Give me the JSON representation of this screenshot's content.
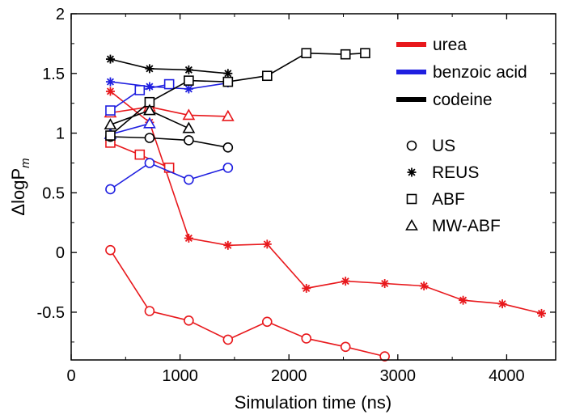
{
  "chart_data": {
    "type": "line",
    "xlabel": "Simulation time (ns)",
    "ylabel_main": "ΔlogP",
    "ylabel_sub": "m",
    "xlim": [
      0,
      4450
    ],
    "ylim": [
      -0.9,
      2.0
    ],
    "xticks": [
      0,
      1000,
      2000,
      3000,
      4000
    ],
    "yticks": [
      -0.5,
      0,
      0.5,
      1,
      1.5,
      2
    ],
    "ytick_labels": [
      "-0.5",
      "0",
      "0.5",
      "1",
      "1.5",
      "2"
    ],
    "grid": false,
    "colors": {
      "urea": "#e8181c",
      "benzoic acid": "#1f1fe0",
      "codeine": "#000000"
    },
    "legend_molecules": [
      {
        "name": "urea",
        "color": "#e8181c"
      },
      {
        "name": "benzoic acid",
        "color": "#1f1fe0"
      },
      {
        "name": "codeine",
        "color": "#000000"
      }
    ],
    "legend_methods": [
      {
        "name": "US",
        "marker": "circle"
      },
      {
        "name": "REUS",
        "marker": "asterisk"
      },
      {
        "name": "ABF",
        "marker": "square"
      },
      {
        "name": "MW-ABF",
        "marker": "triangle"
      }
    ],
    "series": [
      {
        "molecule": "urea",
        "method": "US",
        "x": [
          360,
          720,
          1080,
          1440,
          1800,
          2160,
          2520,
          2880
        ],
        "y": [
          0.02,
          -0.49,
          -0.57,
          -0.73,
          -0.58,
          -0.72,
          -0.79,
          -0.87
        ]
      },
      {
        "molecule": "urea",
        "method": "REUS",
        "x": [
          360,
          720,
          1080,
          1440,
          1800,
          2160,
          2520,
          2880,
          3240,
          3600,
          3960,
          4320
        ],
        "y": [
          1.35,
          1.09,
          0.12,
          0.06,
          0.07,
          -0.3,
          -0.24,
          -0.26,
          -0.28,
          -0.4,
          -0.43,
          -0.51
        ]
      },
      {
        "molecule": "urea",
        "method": "ABF",
        "x": [
          360,
          630,
          900
        ],
        "y": [
          0.92,
          0.82,
          0.71
        ]
      },
      {
        "molecule": "urea",
        "method": "MW-ABF",
        "x": [
          360,
          720,
          1080,
          1440
        ],
        "y": [
          1.17,
          1.22,
          1.15,
          1.14
        ]
      },
      {
        "molecule": "benzoic acid",
        "method": "US",
        "x": [
          360,
          720,
          1080,
          1440
        ],
        "y": [
          0.53,
          0.75,
          0.61,
          0.71
        ]
      },
      {
        "molecule": "benzoic acid",
        "method": "REUS",
        "x": [
          360,
          720,
          1080,
          1440
        ],
        "y": [
          1.43,
          1.39,
          1.37,
          1.42
        ]
      },
      {
        "molecule": "benzoic acid",
        "method": "ABF",
        "x": [
          360,
          630,
          900
        ],
        "y": [
          1.19,
          1.36,
          1.41
        ]
      },
      {
        "molecule": "benzoic acid",
        "method": "MW-ABF",
        "x": [
          360,
          720
        ],
        "y": [
          0.99,
          1.08
        ]
      },
      {
        "molecule": "codeine",
        "method": "US",
        "x": [
          360,
          720,
          1080,
          1440
        ],
        "y": [
          0.97,
          0.96,
          0.94,
          0.88
        ]
      },
      {
        "molecule": "codeine",
        "method": "REUS",
        "x": [
          360,
          720,
          1080,
          1440
        ],
        "y": [
          1.62,
          1.54,
          1.53,
          1.5
        ]
      },
      {
        "molecule": "codeine",
        "method": "ABF",
        "x": [
          360,
          720,
          1080,
          1440,
          1800,
          2160,
          2520,
          2700
        ],
        "y": [
          0.98,
          1.26,
          1.44,
          1.43,
          1.48,
          1.67,
          1.66,
          1.67
        ]
      },
      {
        "molecule": "codeine",
        "method": "MW-ABF",
        "x": [
          360,
          720,
          1080
        ],
        "y": [
          1.07,
          1.19,
          1.04
        ]
      }
    ]
  }
}
